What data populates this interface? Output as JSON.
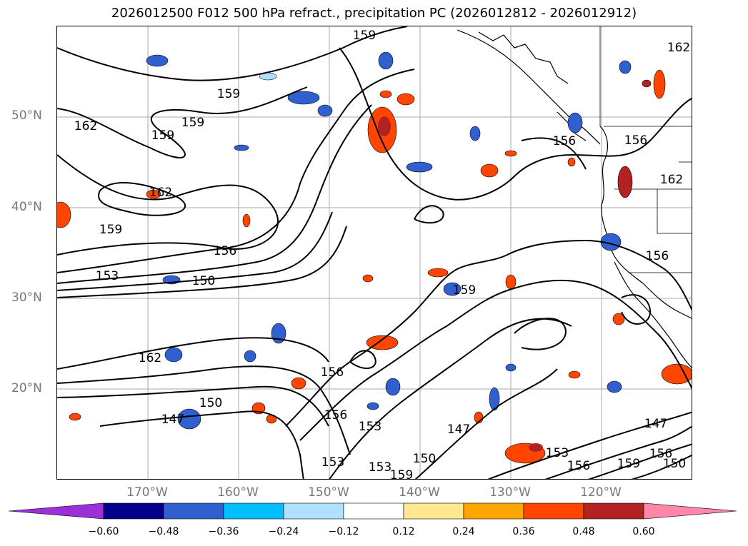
{
  "title": "2026012500 F012 500 hPa refract., precipitation PC (2026012812 - 2026012912)",
  "lat_labels": [
    "50°N",
    "40°N",
    "30°N",
    "20°N"
  ],
  "lon_labels": [
    "170°W",
    "160°W",
    "150°W",
    "140°W",
    "130°W",
    "120°W"
  ],
  "contour_labels": [
    "159",
    "159",
    "159",
    "162",
    "159",
    "162",
    "159",
    "156",
    "153",
    "150",
    "162",
    "150",
    "147",
    "156",
    "156",
    "153",
    "153",
    "150",
    "153",
    "159",
    "147",
    "156",
    "159",
    "147",
    "159",
    "150",
    "156",
    "153",
    "162",
    "156",
    "156",
    "156",
    "162"
  ],
  "colorbar": {
    "ticks": [
      "−0.60",
      "−0.48",
      "−0.36",
      "−0.24",
      "−0.12",
      "0.12",
      "0.24",
      "0.36",
      "0.48",
      "0.60"
    ],
    "colors": [
      "#9b30d9",
      "#00008b",
      "#3060d0",
      "#00bfff",
      "#b0e0ff",
      "#ffffff",
      "#ffe990",
      "#ffa500",
      "#ff4500",
      "#b22222",
      "#ff88aa"
    ]
  }
}
